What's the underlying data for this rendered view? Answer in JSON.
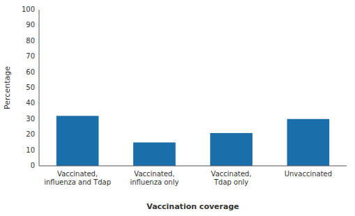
{
  "chart_data": {
    "type": "bar",
    "categories": [
      "Vaccinated,\ninfluenza and Tdap",
      "Vaccinated,\ninfluenza only",
      "Vaccinated,\nTdap only",
      "Unvaccinated"
    ],
    "values": [
      32,
      15,
      21,
      30
    ],
    "color": "#1a6fab",
    "xlabel": "Vaccination coverage",
    "ylabel": "Percentage",
    "ylim": [
      0,
      100
    ],
    "yticks": [
      0,
      10,
      20,
      30,
      40,
      50,
      60,
      70,
      80,
      90,
      100
    ],
    "grid": false
  }
}
